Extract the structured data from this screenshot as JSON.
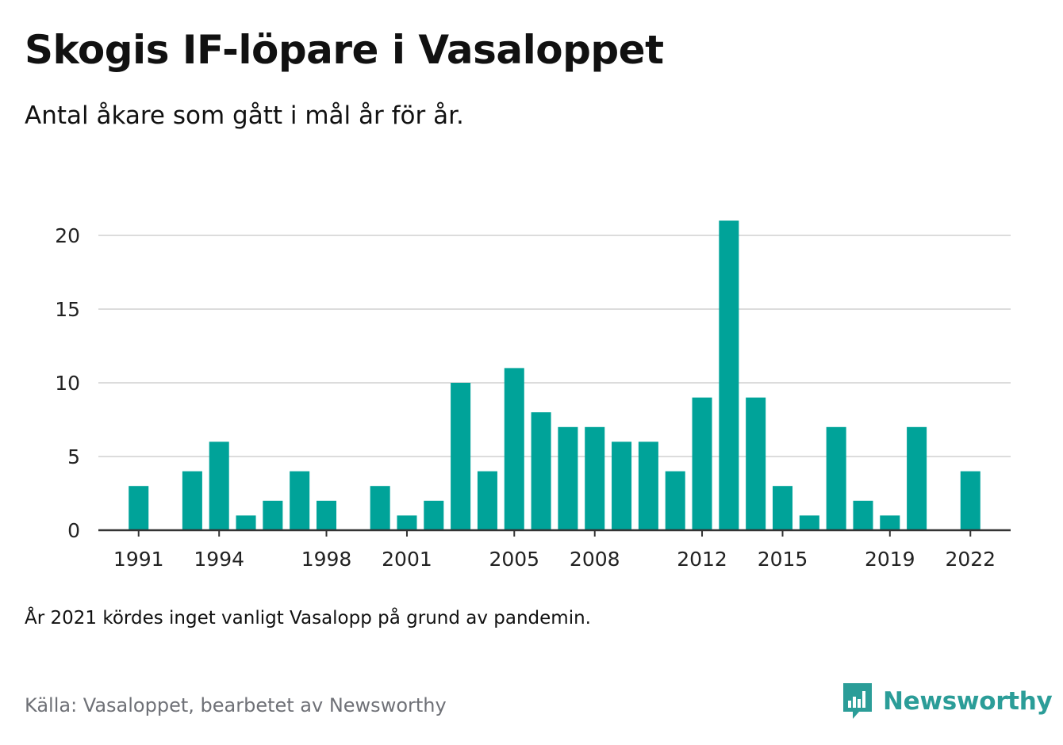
{
  "title": "Skogis IF-löpare i Vasaloppet",
  "subtitle": "Antal åkare som gått i mål år för år.",
  "note": "År 2021 kördes inget vanligt Vasalopp på grund av pandemin.",
  "source": "Källa: Vasaloppet, bearbetet av Newsworthy",
  "brand": {
    "name": "Newsworthy",
    "icon": "newsworthy-logo-icon",
    "color": "#2b9d98"
  },
  "chart_data": {
    "type": "bar",
    "x": [
      1990,
      1991,
      1992,
      1993,
      1994,
      1995,
      1996,
      1997,
      1998,
      1999,
      2000,
      2001,
      2002,
      2003,
      2004,
      2005,
      2006,
      2007,
      2008,
      2009,
      2010,
      2011,
      2012,
      2013,
      2014,
      2015,
      2016,
      2017,
      2018,
      2019,
      2020,
      2021,
      2022,
      2023
    ],
    "values": [
      0,
      3,
      0,
      4,
      6,
      1,
      2,
      4,
      2,
      0,
      3,
      1,
      2,
      10,
      4,
      11,
      8,
      7,
      7,
      6,
      6,
      4,
      9,
      21,
      9,
      3,
      1,
      7,
      2,
      1,
      7,
      0,
      4,
      0
    ],
    "x_ticks": [
      "1991",
      "1994",
      "1998",
      "2001",
      "2005",
      "2008",
      "2012",
      "2015",
      "2019",
      "2022"
    ],
    "y_ticks": [
      "0",
      "5",
      "10",
      "15",
      "20"
    ],
    "ylim": [
      0,
      21
    ],
    "bar_color": "#00a399",
    "grid": true,
    "legend": "none"
  }
}
